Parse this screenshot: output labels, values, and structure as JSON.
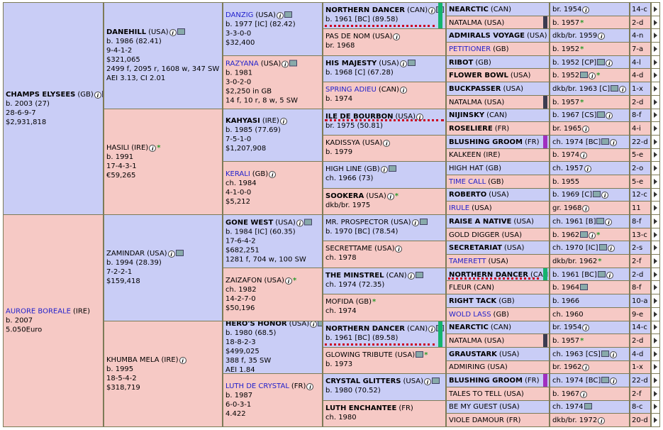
{
  "gen1": [
    {
      "name": "CHAMPS ELYSEES",
      "country": "(GB)",
      "lines": [
        "b. 2003 (27)",
        "28-6-9-7",
        "$2,931,818"
      ]
    },
    {
      "name": "AURORE BOREALE",
      "country": "(IRE)",
      "lines": [
        "b. 2007",
        "5.050Euro"
      ]
    }
  ],
  "gen2": [
    {
      "name": "DANEHILL",
      "country": "(USA)",
      "lines": [
        "b. 1986 (82.41)",
        "9-4-1-2",
        "$321,065",
        "2499 f, 2095 r, 1608 w, 347 SW",
        "AEI 3.13, CI 2.01"
      ]
    },
    {
      "name": "HASILI",
      "country": "(IRE)",
      "lines": [
        "b. 1991",
        "17-4-3-1",
        "€59,265"
      ]
    },
    {
      "name": "ZAMINDAR",
      "country": "(USA)",
      "lines": [
        "b. 1994 (28.39)",
        "7-2-2-1",
        "$159,418"
      ]
    },
    {
      "name": "KHUMBA MELA",
      "country": "(IRE)",
      "lines": [
        "b. 1995",
        "18-5-4-2",
        "$318,719"
      ]
    }
  ],
  "gen3": [
    {
      "name": "DANZIG",
      "country": "(USA)",
      "lines": [
        "b. 1977 [IC] (82.42)",
        "3-3-0-0",
        "$32,400"
      ]
    },
    {
      "name": "RAZYANA",
      "country": "(USA)",
      "lines": [
        "b. 1981",
        "3-0-2-0",
        "$2,250 in GB",
        "14 f, 10 r, 8 w, 5 SW"
      ]
    },
    {
      "name": "KAHYASI",
      "country": "(IRE)",
      "lines": [
        "b. 1985 (77.69)",
        "7-5-1-0",
        "$1,207,908"
      ]
    },
    {
      "name": "KERALI",
      "country": "(GB)",
      "lines": [
        "ch. 1984",
        "4-1-0-0",
        "$5,212"
      ]
    },
    {
      "name": "GONE WEST",
      "country": "(USA)",
      "lines": [
        "b. 1984 [IC] (60.35)",
        "17-6-4-2",
        "$682,251",
        "1281 f, 704 w, 100 SW"
      ]
    },
    {
      "name": "ZAIZAFON",
      "country": "(USA)",
      "lines": [
        "ch. 1982",
        "14-2-7-0",
        "$50,196"
      ]
    },
    {
      "name": "HERO'S HONOR",
      "country": "(USA)",
      "lines": [
        "b. 1980 (68.5)",
        "18-8-2-3",
        "$499,025",
        "388 f, 35 SW",
        "AEI 1.84"
      ]
    },
    {
      "name": "LUTH DE CRYSTAL",
      "country": "(FR)",
      "lines": [
        "b. 1987",
        "6-0-3-1",
        "4.422"
      ]
    }
  ],
  "gen4": [
    {
      "name": "NORTHERN DANCER",
      "country": "(CAN)",
      "lines": [
        "b. 1961 [BC] (89.58)"
      ]
    },
    {
      "name": "PAS DE NOM",
      "country": "(USA)",
      "lines": [
        "br. 1968"
      ]
    },
    {
      "name": "HIS MAJESTY",
      "country": "(USA)",
      "lines": [
        "b. 1968 [C] (67.28)"
      ]
    },
    {
      "name": "SPRING ADIEU",
      "country": "(CAN)",
      "lines": [
        "b. 1974"
      ]
    },
    {
      "name": "ILE DE BOURBON",
      "country": "(USA)",
      "lines": [
        "br. 1975 (50.81)"
      ]
    },
    {
      "name": "KADISSYA",
      "country": "(USA)",
      "lines": [
        "b. 1979"
      ]
    },
    {
      "name": "HIGH LINE",
      "country": "(GB)",
      "lines": [
        "ch. 1966 (73)"
      ]
    },
    {
      "name": "SOOKERA",
      "country": "(USA)",
      "lines": [
        "dkb/br. 1975"
      ]
    },
    {
      "name": "MR. PROSPECTOR",
      "country": "(USA)",
      "lines": [
        "b. 1970 [BC] (78.54)"
      ]
    },
    {
      "name": "SECRETTAME",
      "country": "(USA)",
      "lines": [
        "ch. 1978"
      ]
    },
    {
      "name": "THE MINSTREL",
      "country": "(CAN)",
      "lines": [
        "ch. 1974 (72.35)"
      ]
    },
    {
      "name": "MOFIDA",
      "country": "(GB)",
      "lines": [
        "ch. 1974"
      ]
    },
    {
      "name": "NORTHERN DANCER",
      "country": "(CAN)",
      "lines": [
        "b. 1961 [BC] (89.58)"
      ]
    },
    {
      "name": "GLOWING TRIBUTE",
      "country": "(USA)",
      "lines": [
        "b. 1973"
      ]
    },
    {
      "name": "CRYSTAL GLITTERS",
      "country": "(USA)",
      "lines": [
        "b. 1980 (70.52)"
      ]
    },
    {
      "name": "LUTH ENCHANTEE",
      "country": "(FR)",
      "lines": [
        "ch. 1980"
      ]
    }
  ],
  "gen5": [
    {
      "name": "NEARCTIC",
      "country": "(CAN)",
      "info": "br. 1954",
      "extra": "14-c"
    },
    {
      "name": "NATALMA",
      "country": "(USA)",
      "info": "b. 1957",
      "extra": "2-d"
    },
    {
      "name": "ADMIRALS VOYAGE",
      "country": "(USA)",
      "info": "dkb/br. 1959",
      "extra": "4-n"
    },
    {
      "name": "PETITIONER",
      "country": "(GB)",
      "info": "b. 1952",
      "extra": "7-a"
    },
    {
      "name": "RIBOT",
      "country": "(GB)",
      "info": "b. 1952 [CP]",
      "extra": "4-l"
    },
    {
      "name": "FLOWER BOWL",
      "country": "(USA)",
      "info": "b. 1952",
      "extra": "4-d"
    },
    {
      "name": "BUCKPASSER",
      "country": "(USA)",
      "info": "dkb/br. 1963 [C]",
      "extra": "1-x"
    },
    {
      "name": "NATALMA",
      "country": "(USA)",
      "info": "b. 1957",
      "extra": "2-d"
    },
    {
      "name": "NIJINSKY",
      "country": "(CAN)",
      "info": "b. 1967 [CS]",
      "extra": "8-f"
    },
    {
      "name": "ROSELIERE",
      "country": "(FR)",
      "info": "br. 1965",
      "extra": "4-i"
    },
    {
      "name": "BLUSHING GROOM",
      "country": "(FR)",
      "info": "ch. 1974 [BC]",
      "extra": "22-d"
    },
    {
      "name": "KALKEEN",
      "country": "(IRE)",
      "info": "b. 1974",
      "extra": "5-e"
    },
    {
      "name": "HIGH HAT",
      "country": "(GB)",
      "info": "ch. 1957",
      "extra": "2-o"
    },
    {
      "name": "TIME CALL",
      "country": "(GB)",
      "info": "b. 1955",
      "extra": "5-e"
    },
    {
      "name": "ROBERTO",
      "country": "(USA)",
      "info": "b. 1969 [C]",
      "extra": "12-c"
    },
    {
      "name": "IRULE",
      "country": "(USA)",
      "info": "gr. 1968",
      "extra": "11"
    },
    {
      "name": "RAISE A NATIVE",
      "country": "(USA)",
      "info": "ch. 1961 [B]",
      "extra": "8-f"
    },
    {
      "name": "GOLD DIGGER",
      "country": "(USA)",
      "info": "b. 1962",
      "extra": "13-c"
    },
    {
      "name": "SECRETARIAT",
      "country": "(USA)",
      "info": "ch. 1970 [IC]",
      "extra": "2-s"
    },
    {
      "name": "TAMERETT",
      "country": "(USA)",
      "info": "dkb/br. 1962",
      "extra": "2-f"
    },
    {
      "name": "NORTHERN DANCER",
      "country": "(CAN)",
      "info": "b. 1961 [BC]",
      "extra": "2-d"
    },
    {
      "name": "FLEUR",
      "country": "(CAN)",
      "info": "b. 1964",
      "extra": "8-f"
    },
    {
      "name": "RIGHT TACK",
      "country": "(GB)",
      "info": "b. 1966",
      "extra": "10-a"
    },
    {
      "name": "WOLD LASS",
      "country": "(GB)",
      "info": "ch. 1960",
      "extra": "9-e"
    },
    {
      "name": "NEARCTIC",
      "country": "(CAN)",
      "info": "br. 1954",
      "extra": "14-c"
    },
    {
      "name": "NATALMA",
      "country": "(USA)",
      "info": "b. 1957",
      "extra": "2-d"
    },
    {
      "name": "GRAUSTARK",
      "country": "(USA)",
      "info": "ch. 1963 [CS]",
      "extra": "4-d"
    },
    {
      "name": "ADMIRING",
      "country": "(USA)",
      "info": "br. 1962",
      "extra": "1-x"
    },
    {
      "name": "BLUSHING GROOM",
      "country": "(FR)",
      "info": "ch. 1974 [BC]",
      "extra": "22-d"
    },
    {
      "name": "TALES TO TELL",
      "country": "(USA)",
      "info": "b. 1967",
      "extra": "2-f"
    },
    {
      "name": "BE MY GUEST",
      "country": "(USA)",
      "info": "ch. 1974",
      "extra": "8-c"
    },
    {
      "name": "VIOLE DAMOUR",
      "country": "(FR)",
      "info": "dkb/br. 1972",
      "extra": "20-d"
    }
  ],
  "colors": {
    "male": "#c9cdf6",
    "female": "#f6c9c5",
    "link": "#2222cc",
    "border": "#7d7b57"
  }
}
